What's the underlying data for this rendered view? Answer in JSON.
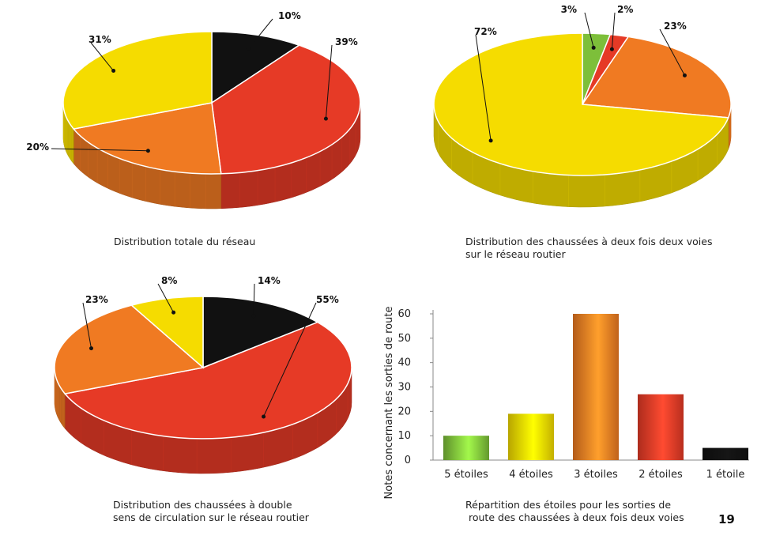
{
  "colors": {
    "black": "#111111",
    "red": "#e63a26",
    "orange": "#f07a22",
    "yellow": "#f5dc00",
    "green": "#7dbf3a"
  },
  "chart_data": [
    {
      "id": "pie1",
      "type": "pie",
      "caption": [
        "Distribution totale du réseau"
      ],
      "slices": [
        {
          "label": "10%",
          "value": 10,
          "color": "black"
        },
        {
          "label": "39%",
          "value": 39,
          "color": "red"
        },
        {
          "label": "20%",
          "value": 20,
          "color": "orange"
        },
        {
          "label": "31%",
          "value": 31,
          "color": "yellow"
        }
      ]
    },
    {
      "id": "pie2",
      "type": "pie",
      "caption": [
        "Distribution des chaussées à deux fois deux voies",
        "sur le réseau routier"
      ],
      "slices": [
        {
          "label": "3%",
          "value": 3,
          "color": "green"
        },
        {
          "label": "2%",
          "value": 2,
          "color": "red"
        },
        {
          "label": "23%",
          "value": 23,
          "color": "orange"
        },
        {
          "label": "72%",
          "value": 72,
          "color": "yellow"
        }
      ]
    },
    {
      "id": "pie3",
      "type": "pie",
      "caption": [
        "Distribution des chaussées à double",
        "sens de circulation sur le réseau routier"
      ],
      "slices": [
        {
          "label": "14%",
          "value": 14,
          "color": "black"
        },
        {
          "label": "55%",
          "value": 55,
          "color": "red"
        },
        {
          "label": "23%",
          "value": 23,
          "color": "orange"
        },
        {
          "label": "8%",
          "value": 8,
          "color": "yellow"
        }
      ]
    },
    {
      "id": "bar1",
      "type": "bar",
      "caption": [
        "Répartition des étoiles pour les sorties de",
        "route des chaussées à deux fois deux voies"
      ],
      "ylabel": "Notes concernant les sorties de route",
      "ylim": [
        0,
        60
      ],
      "yticks": [
        0,
        10,
        20,
        30,
        40,
        50,
        60
      ],
      "categories": [
        "5 étoiles",
        "4 étoiles",
        "3 étoiles",
        "2 étoiles",
        "1 étoile"
      ],
      "values": [
        10,
        19,
        60,
        27,
        5
      ],
      "bar_colors": [
        "green",
        "yellow",
        "orange",
        "red",
        "black"
      ]
    }
  ],
  "page_number": "19"
}
